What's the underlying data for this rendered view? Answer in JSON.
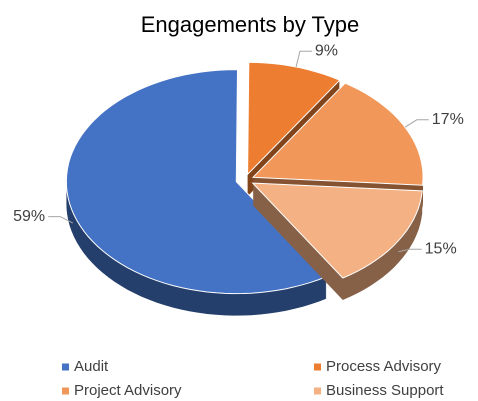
{
  "chart_data": {
    "type": "pie",
    "title": "Engagements by Type",
    "categories": [
      "Audit",
      "Process Advisory",
      "Project Advisory",
      "Business Support"
    ],
    "values": [
      59,
      9,
      17,
      15
    ],
    "value_labels": [
      "59%",
      "9%",
      "17%",
      "15%"
    ],
    "colors": [
      "#4472c4",
      "#ed7d31",
      "#f1975a",
      "#f4b183"
    ],
    "legend": "bottom"
  }
}
